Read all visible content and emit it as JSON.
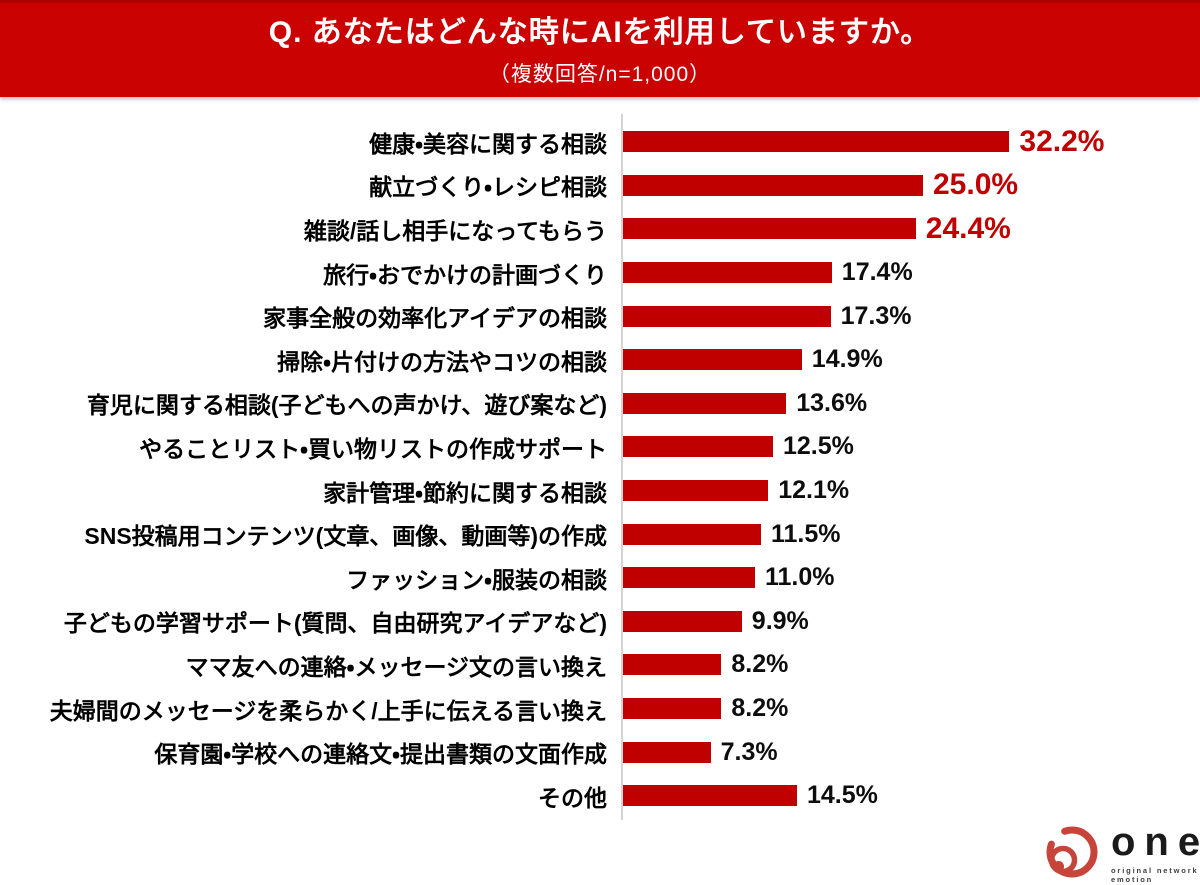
{
  "header": {
    "title": "Q. あなたはどんな時にAIを利用していますか。",
    "subtitle": "（複数回答/n=1,000）",
    "bg_color": "#cb0202",
    "text_color": "#ffffff"
  },
  "chart_data": {
    "type": "bar",
    "orientation": "horizontal",
    "title": "Q. あなたはどんな時にAIを利用していますか。",
    "subtitle": "（複数回答/n=1,000）",
    "sample_note": "複数回答/n=1,000",
    "categories": [
      "健康・美容に関する相談",
      "献立づくり・レシピ相談",
      "雑談/話し相手になってもらう",
      "旅行・おでかけの計画づくり",
      "家事全般の効率化アイデアの相談",
      "掃除・片付けの方法やコツの相談",
      "育児に関する相談(子どもへの声かけ、遊び案など)",
      "やることリスト・買い物リストの作成サポート",
      "家計管理・節約に関する相談",
      "SNS投稿用コンテンツ(文章、画像、動画等)の作成",
      "ファッション・服装の相談",
      "子どもの学習サポート(質問、自由研究アイデアなど)",
      "ママ友への連絡・メッセージ文の言い換え",
      "夫婦間のメッセージを柔らかく/上手に伝える言い換え",
      "保育園・学校への連絡文・提出書類の文面作成",
      "その他"
    ],
    "values": [
      32.2,
      25.0,
      24.4,
      17.4,
      17.3,
      14.9,
      13.6,
      12.5,
      12.1,
      11.5,
      11.0,
      9.9,
      8.2,
      8.2,
      7.3,
      14.5
    ],
    "value_labels": [
      "32.2%",
      "25.0%",
      "24.4%",
      "17.4%",
      "17.3%",
      "14.9%",
      "13.6%",
      "12.5%",
      "12.1%",
      "11.5%",
      "11.0%",
      "9.9%",
      "8.2%",
      "8.2%",
      "7.3%",
      "14.5%"
    ],
    "highlight_count": 3,
    "bar_color": "#c00000",
    "highlight_value_color": "#c00000",
    "value_color": "#0d0d0d",
    "axis_color": "#d4d4d4",
    "xlim": [
      0,
      46.5
    ],
    "grid": false,
    "legend": false
  },
  "logo": {
    "wordmark": "one",
    "tagline": "original network emotion",
    "mark_color": "#c6443a"
  }
}
